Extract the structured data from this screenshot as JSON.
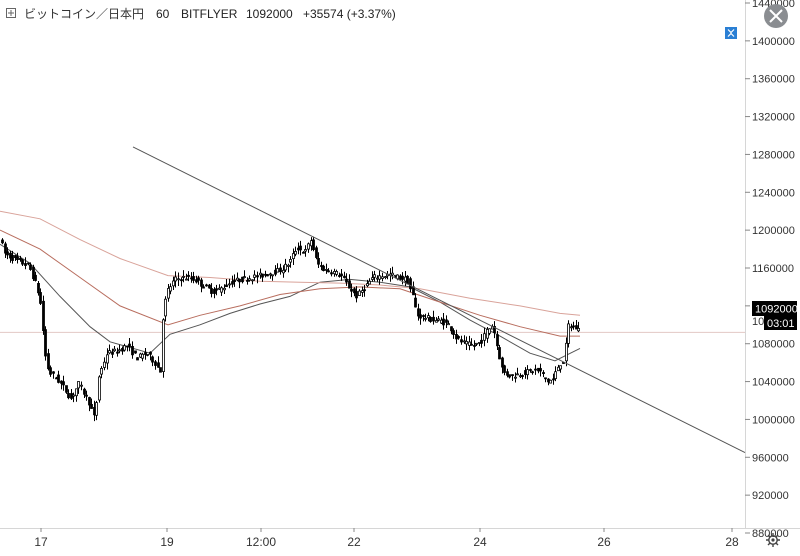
{
  "header": {
    "symbol": "ビットコイン／日本円",
    "interval": "60",
    "exchange": "BITFLYER",
    "last_price": "1092000",
    "change": "+35574 (+3.37%)"
  },
  "price_badge": {
    "price": "1092000",
    "countdown": "03:01",
    "partial_label": "10"
  },
  "icons": {
    "close": "close-icon",
    "expand": "expand-icon",
    "settings": "gear-icon",
    "symbol": "plus-square-icon"
  },
  "colors": {
    "candle": "#000000",
    "ma_dark": "#555555",
    "ma_red": "#b86d5e",
    "ma_pink": "#d9a39a",
    "trendline": "#555555",
    "badge_bg": "#000000",
    "axis_text": "#333333"
  },
  "chart_data": {
    "type": "candlestick",
    "title": "ビットコイン／日本円 60 BITFLYER",
    "y_axis": {
      "ticks": [
        880000,
        920000,
        960000,
        1000000,
        1040000,
        1080000,
        1120000,
        1160000,
        1200000,
        1240000,
        1280000,
        1320000,
        1360000,
        1400000,
        1440000
      ],
      "ylim": [
        851000,
        1452000
      ],
      "position": "right"
    },
    "x_axis": {
      "ticks": [
        "17",
        "19",
        "12:00",
        "22",
        "24",
        "26",
        "28"
      ]
    },
    "price_line": 1092000,
    "ohlc_path": [
      [
        0,
        1195000
      ],
      [
        6,
        1175000
      ],
      [
        18,
        1168000
      ],
      [
        30,
        1162000
      ],
      [
        38,
        1140000
      ],
      [
        42,
        1120000
      ],
      [
        46,
        1070000
      ],
      [
        50,
        1050000
      ],
      [
        56,
        1045000
      ],
      [
        64,
        1035000
      ],
      [
        72,
        1022000
      ],
      [
        80,
        1038000
      ],
      [
        90,
        1018000
      ],
      [
        96,
        1000000
      ],
      [
        100,
        1045000
      ],
      [
        108,
        1070000
      ],
      [
        118,
        1072000
      ],
      [
        128,
        1078000
      ],
      [
        138,
        1065000
      ],
      [
        148,
        1070000
      ],
      [
        156,
        1060000
      ],
      [
        162,
        1050000
      ],
      [
        164,
        1110000
      ],
      [
        168,
        1135000
      ],
      [
        176,
        1148000
      ],
      [
        186,
        1150000
      ],
      [
        196,
        1148000
      ],
      [
        206,
        1140000
      ],
      [
        214,
        1135000
      ],
      [
        222,
        1138000
      ],
      [
        232,
        1145000
      ],
      [
        242,
        1148000
      ],
      [
        252,
        1150000
      ],
      [
        262,
        1152000
      ],
      [
        272,
        1155000
      ],
      [
        282,
        1158000
      ],
      [
        290,
        1165000
      ],
      [
        298,
        1182000
      ],
      [
        306,
        1176000
      ],
      [
        312,
        1190000
      ],
      [
        318,
        1165000
      ],
      [
        326,
        1158000
      ],
      [
        334,
        1156000
      ],
      [
        342,
        1152000
      ],
      [
        350,
        1140000
      ],
      [
        358,
        1130000
      ],
      [
        366,
        1140000
      ],
      [
        374,
        1150000
      ],
      [
        384,
        1152000
      ],
      [
        392,
        1153000
      ],
      [
        400,
        1150000
      ],
      [
        408,
        1148000
      ],
      [
        414,
        1130000
      ],
      [
        418,
        1110000
      ],
      [
        426,
        1108000
      ],
      [
        434,
        1105000
      ],
      [
        442,
        1104000
      ],
      [
        450,
        1100000
      ],
      [
        458,
        1085000
      ],
      [
        466,
        1080000
      ],
      [
        474,
        1078000
      ],
      [
        482,
        1082000
      ],
      [
        488,
        1094000
      ],
      [
        494,
        1100000
      ],
      [
        498,
        1078000
      ],
      [
        504,
        1050000
      ],
      [
        512,
        1046000
      ],
      [
        520,
        1048000
      ],
      [
        528,
        1050000
      ],
      [
        536,
        1052000
      ],
      [
        542,
        1050000
      ],
      [
        548,
        1040000
      ],
      [
        554,
        1042000
      ],
      [
        560,
        1058000
      ],
      [
        566,
        1062000
      ],
      [
        568,
        1100000
      ],
      [
        574,
        1098000
      ],
      [
        580,
        1095000
      ]
    ],
    "moving_averages": [
      {
        "color": "ma_dark",
        "points": [
          [
            0,
            1185000
          ],
          [
            30,
            1165000
          ],
          [
            60,
            1130000
          ],
          [
            90,
            1098000
          ],
          [
            110,
            1082000
          ],
          [
            150,
            1070000
          ],
          [
            170,
            1090000
          ],
          [
            200,
            1100000
          ],
          [
            230,
            1112000
          ],
          [
            260,
            1122000
          ],
          [
            290,
            1130000
          ],
          [
            320,
            1145000
          ],
          [
            350,
            1148000
          ],
          [
            380,
            1145000
          ],
          [
            410,
            1140000
          ],
          [
            440,
            1124000
          ],
          [
            470,
            1105000
          ],
          [
            500,
            1088000
          ],
          [
            530,
            1070000
          ],
          [
            555,
            1062000
          ],
          [
            580,
            1075000
          ]
        ]
      },
      {
        "color": "ma_red",
        "points": [
          [
            0,
            1200000
          ],
          [
            40,
            1180000
          ],
          [
            80,
            1150000
          ],
          [
            120,
            1120000
          ],
          [
            168,
            1100000
          ],
          [
            200,
            1110000
          ],
          [
            240,
            1120000
          ],
          [
            280,
            1132000
          ],
          [
            320,
            1138000
          ],
          [
            360,
            1140000
          ],
          [
            400,
            1138000
          ],
          [
            440,
            1124000
          ],
          [
            480,
            1110000
          ],
          [
            520,
            1098000
          ],
          [
            560,
            1088000
          ],
          [
            580,
            1088000
          ]
        ]
      },
      {
        "color": "ma_pink",
        "points": [
          [
            0,
            1220000
          ],
          [
            40,
            1212000
          ],
          [
            80,
            1190000
          ],
          [
            120,
            1170000
          ],
          [
            168,
            1152000
          ],
          [
            210,
            1150000
          ],
          [
            260,
            1146000
          ],
          [
            300,
            1145000
          ],
          [
            340,
            1144000
          ],
          [
            380,
            1142000
          ],
          [
            420,
            1138000
          ],
          [
            470,
            1128000
          ],
          [
            520,
            1120000
          ],
          [
            560,
            1112000
          ],
          [
            580,
            1110000
          ]
        ]
      }
    ],
    "trendline": [
      [
        133,
        1288000
      ],
      [
        745,
        965000
      ]
    ]
  }
}
